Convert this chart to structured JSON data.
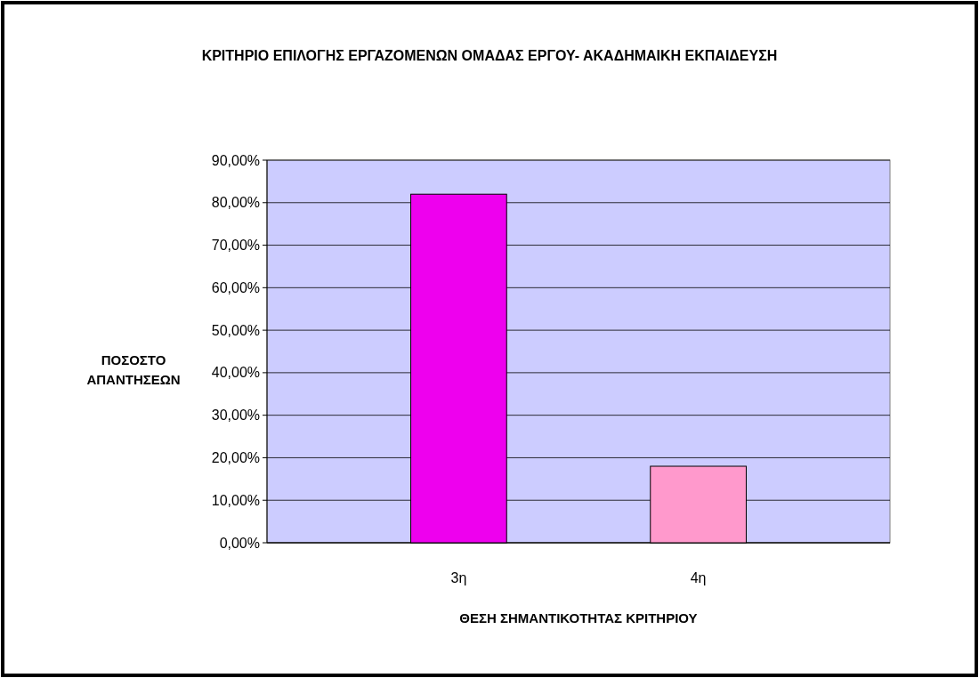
{
  "chart_data": {
    "type": "bar",
    "title": "ΚΡΙΤΗΡΙΟ ΕΠΙΛΟΓΗΣ ΕΡΓΑΖΟΜΕΝΩΝ ΟΜΑΔΑΣ ΕΡΓΟΥ- ΑΚΑΔΗΜΑΙΚΗ ΕΚΠΑΙΔΕΥΣΗ",
    "xlabel": "ΘΕΣΗ ΣΗΜΑΝΤΙΚΟΤΗΤΑΣ ΚΡΙΤΗΡΙΟΥ",
    "ylabel": "ΠΟΣΟΣΤΟ ΑΠΑΝΤΗΣΕΩΝ",
    "categories": [
      "3η",
      "4η"
    ],
    "values": [
      82,
      18
    ],
    "colors": [
      "#ee00ee",
      "#ff99cc"
    ],
    "ylim": [
      0,
      90
    ],
    "yticks": [
      {
        "value": 0,
        "label": "0,00%"
      },
      {
        "value": 10,
        "label": "10,00%"
      },
      {
        "value": 20,
        "label": "20,00%"
      },
      {
        "value": 30,
        "label": "30,00%"
      },
      {
        "value": 40,
        "label": "40,00%"
      },
      {
        "value": 50,
        "label": "50,00%"
      },
      {
        "value": 60,
        "label": "60,00%"
      },
      {
        "value": 70,
        "label": "70,00%"
      },
      {
        "value": 80,
        "label": "80,00%"
      },
      {
        "value": 90,
        "label": "90,00%"
      }
    ],
    "grid": "y"
  }
}
